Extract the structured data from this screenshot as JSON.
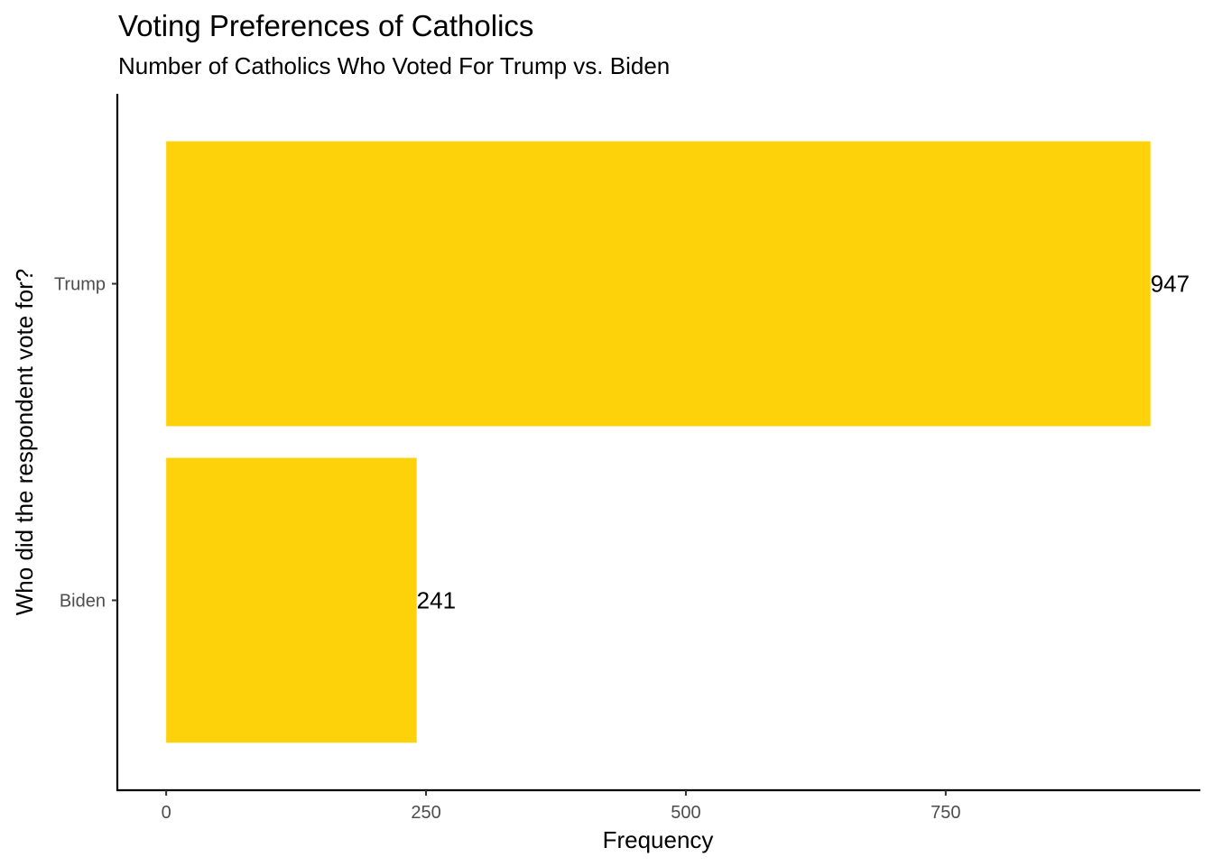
{
  "chart_data": {
    "type": "bar",
    "orientation": "horizontal",
    "title": "Voting Preferences of Catholics",
    "subtitle": "Number of Catholics Who Voted For Trump vs. Biden",
    "xlabel": "Frequency",
    "ylabel": "Who did the respondent vote for?",
    "categories": [
      "Trump",
      "Biden"
    ],
    "values": [
      947,
      241
    ],
    "data_labels": [
      "947",
      "241"
    ],
    "x_ticks": [
      0,
      250,
      500,
      750
    ],
    "x_tick_labels": [
      "0",
      "250",
      "500",
      "750"
    ],
    "xlim": [
      -47,
      995
    ],
    "bar_color": "#FED20B",
    "grid": false,
    "legend": "none"
  }
}
